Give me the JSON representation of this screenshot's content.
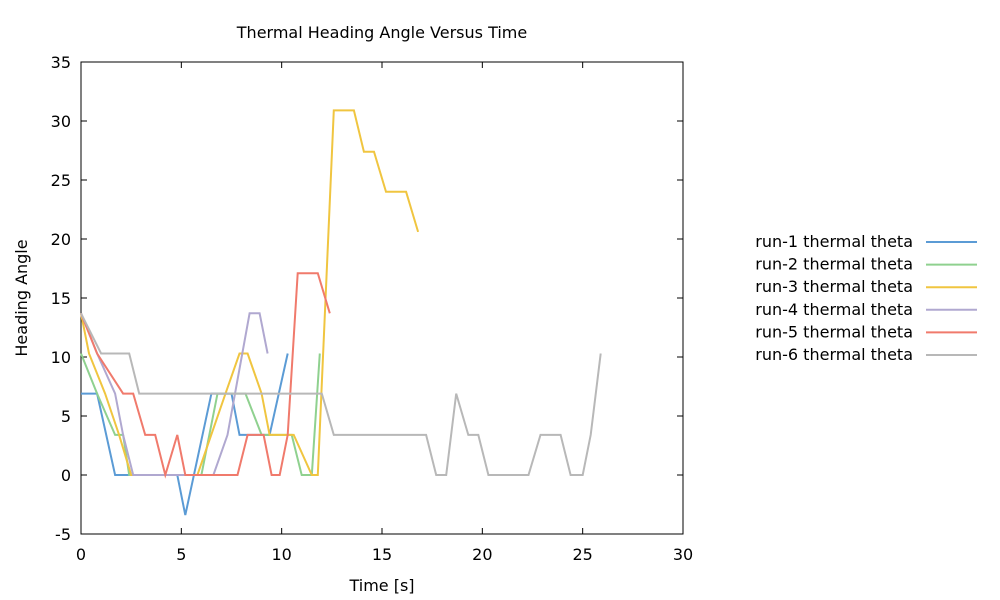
{
  "chart_data": {
    "type": "line",
    "title": "Thermal Heading Angle Versus Time",
    "xlabel": "Time [s]",
    "ylabel": "Heading Angle",
    "xlim": [
      0,
      30
    ],
    "ylim": [
      -5,
      35
    ],
    "xticks": [
      "0",
      "5",
      "10",
      "15",
      "20",
      "25",
      "30"
    ],
    "yticks": [
      "-5",
      "0",
      "5",
      "10",
      "15",
      "20",
      "25",
      "30",
      "35"
    ],
    "grid": false,
    "legend_position": "right",
    "series": [
      {
        "name": "run-1 thermal theta",
        "color": "#5b9bd5",
        "x": [
          0,
          0.8,
          1.7,
          2.5,
          4.8,
          5.2,
          6.5,
          7.5,
          7.9,
          9.4,
          10.3
        ],
        "y": [
          6.9,
          6.9,
          0,
          0,
          0,
          -3.4,
          6.9,
          6.9,
          3.4,
          3.4,
          10.3
        ]
      },
      {
        "name": "run-2 thermal theta",
        "color": "#8fd18f",
        "x": [
          0,
          0.8,
          1.7,
          2.1,
          2.4,
          6.0,
          6.8,
          8.2,
          9.0,
          10.5,
          11.0,
          11.5,
          11.9
        ],
        "y": [
          10.3,
          6.9,
          3.4,
          3.4,
          0,
          0,
          6.9,
          6.9,
          3.4,
          3.4,
          0,
          0,
          10.3
        ]
      },
      {
        "name": "run-3 thermal theta",
        "color": "#f0c540",
        "x": [
          0,
          0.4,
          1.2,
          1.9,
          2.5,
          5.0,
          5.8,
          7.2,
          7.9,
          8.3,
          9.0,
          9.4,
          10.4,
          10.6,
          11.5,
          11.8,
          12.6,
          12.9,
          13.6,
          14.1,
          14.6,
          15.2,
          16.2,
          16.8
        ],
        "y": [
          13.7,
          10.3,
          6.9,
          3.4,
          0,
          0,
          0,
          6.9,
          10.3,
          10.3,
          6.9,
          3.4,
          3.4,
          3.4,
          0,
          0,
          30.9,
          30.9,
          30.9,
          27.4,
          27.4,
          24.0,
          24.0,
          20.6
        ]
      },
      {
        "name": "run-4 thermal theta",
        "color": "#b0a8d0",
        "x": [
          0,
          0.8,
          1.7,
          2.1,
          2.6,
          6.6,
          7.3,
          8.4,
          8.9,
          9.3
        ],
        "y": [
          13.7,
          10.3,
          6.9,
          3.4,
          0,
          0,
          3.4,
          13.7,
          13.7,
          10.3
        ]
      },
      {
        "name": "run-5 thermal theta",
        "color": "#f07a6c",
        "x": [
          0,
          0.8,
          2.1,
          2.6,
          3.2,
          3.7,
          4.2,
          4.8,
          5.2,
          7.8,
          8.3,
          9.1,
          9.5,
          9.9,
          10.3,
          10.8,
          11.8,
          12.4
        ],
        "y": [
          13.7,
          10.3,
          6.9,
          6.9,
          3.4,
          3.4,
          0,
          3.4,
          0,
          0,
          3.4,
          3.4,
          0,
          0,
          3.4,
          17.1,
          17.1,
          13.7
        ]
      },
      {
        "name": "run-6 thermal theta",
        "color": "#b8b8b8",
        "x": [
          0,
          1.0,
          2.4,
          2.9,
          12.0,
          12.6,
          17.2,
          17.7,
          18.2,
          18.7,
          19.3,
          19.8,
          20.3,
          22.3,
          22.9,
          23.9,
          24.4,
          25.0,
          25.4,
          25.9
        ],
        "y": [
          13.7,
          10.3,
          10.3,
          6.9,
          6.9,
          3.4,
          3.4,
          0,
          0,
          6.9,
          3.4,
          3.4,
          0,
          0,
          3.4,
          3.4,
          0,
          0,
          3.4,
          10.3
        ]
      }
    ]
  }
}
